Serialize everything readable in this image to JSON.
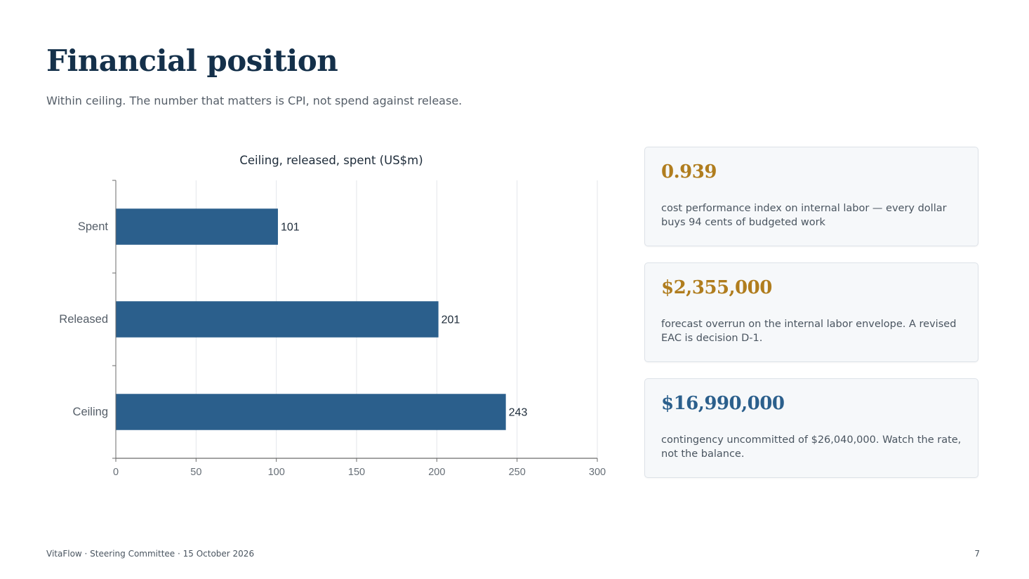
{
  "slide": {
    "title": "Financial position",
    "subtitle": "Within ceiling. The number that matters is CPI, not spend against release."
  },
  "chart_data": {
    "type": "bar",
    "orientation": "horizontal",
    "title": "Ceiling, released, spent (US$m)",
    "categories": [
      "Spent",
      "Released",
      "Ceiling"
    ],
    "values": [
      101,
      201,
      243
    ],
    "data_labels": [
      "101",
      "201",
      "243"
    ],
    "xlim": [
      0,
      300
    ],
    "xticks": [
      0,
      50,
      100,
      150,
      200,
      250,
      300
    ],
    "xtick_labels": [
      "0",
      "50",
      "100",
      "150",
      "200",
      "250",
      "300"
    ],
    "xlabel": "",
    "ylabel": "",
    "grid": true,
    "legend": "none",
    "bar_color": "#2b5f8c"
  },
  "cards": [
    {
      "value": "0.939",
      "value_color": "#b07d1e",
      "text": "cost performance index on internal labor — every dollar buys 94 cents of budgeted work"
    },
    {
      "value": "$2,355,000",
      "value_color": "#b07d1e",
      "text": "forecast overrun on the internal labor envelope. A revised EAC is decision D-1."
    },
    {
      "value": "$16,990,000",
      "value_color": "#2b5f8c",
      "text": "contingency uncommitted of $26,040,000. Watch the rate, not the balance."
    }
  ],
  "footer": {
    "left": "VitaFlow · Steering Committee · 15 October 2026",
    "page_number": "7"
  }
}
